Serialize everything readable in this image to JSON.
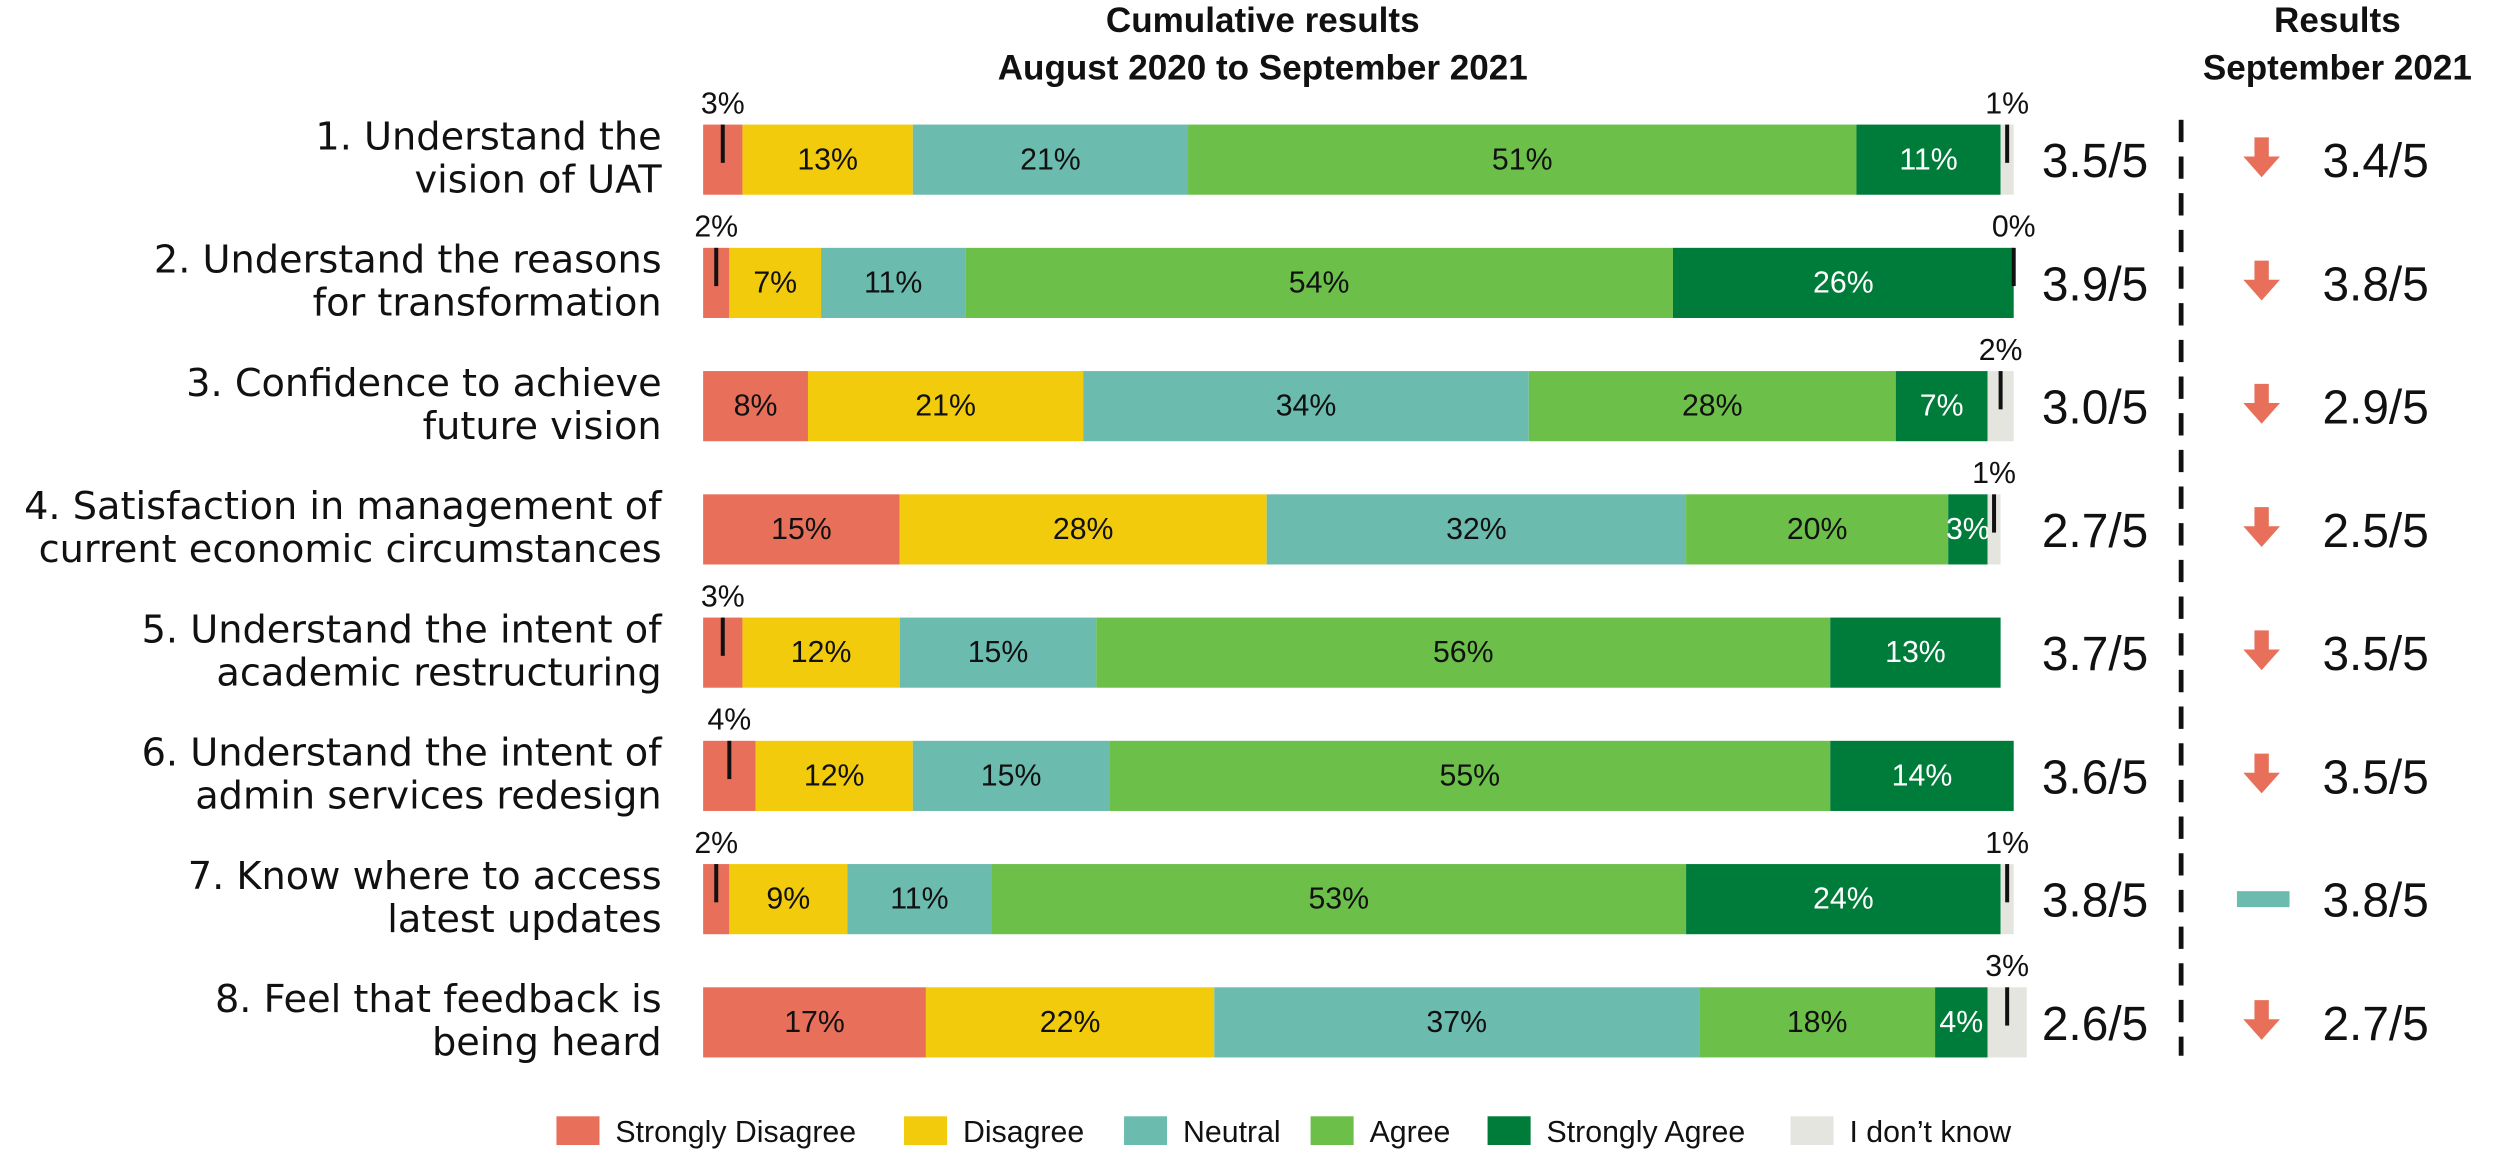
{
  "chart_data": {
    "type": "stacked-bar-horizontal",
    "title": [
      "Cumulative results",
      "August 2020 to September 2021"
    ],
    "side_title": [
      "Results",
      "September 2021"
    ],
    "categories": [
      [
        "1. Understand the",
        "vision of UAT"
      ],
      [
        "2. Understand the reasons",
        "for transformation"
      ],
      [
        "3. Confidence to achieve",
        "future vision"
      ],
      [
        "4. Satisfaction in management of",
        "current economic circumstances"
      ],
      [
        "5. Understand the intent of",
        "academic restructuring"
      ],
      [
        "6. Understand the intent of",
        "admin services redesign"
      ],
      [
        "7. Know where to access",
        "latest updates"
      ],
      [
        "8. Feel that feedback is",
        "being heard"
      ]
    ],
    "xlim": [
      0,
      100
    ],
    "series": [
      {
        "name": "Strongly Disagree",
        "color": "#e8705a",
        "values": [
          3,
          2,
          8,
          15,
          3,
          4,
          2,
          17
        ],
        "value_labels": [
          "3%",
          "2%",
          "8%",
          "15%",
          "3%",
          "4%",
          "2%",
          "17%"
        ]
      },
      {
        "name": "Disagree",
        "color": "#f2cc0c",
        "values": [
          13,
          7,
          21,
          28,
          12,
          12,
          9,
          22
        ],
        "value_labels": [
          "13%",
          "7%",
          "21%",
          "28%",
          "12%",
          "12%",
          "9%",
          "22%"
        ]
      },
      {
        "name": "Neutral",
        "color": "#6bbbae",
        "values": [
          21,
          11,
          34,
          32,
          15,
          15,
          11,
          37
        ],
        "value_labels": [
          "21%",
          "11%",
          "34%",
          "32%",
          "15%",
          "15%",
          "11%",
          "37%"
        ]
      },
      {
        "name": "Agree",
        "color": "#6cc04a",
        "values": [
          51,
          54,
          28,
          20,
          56,
          55,
          53,
          18
        ],
        "value_labels": [
          "51%",
          "54%",
          "28%",
          "20%",
          "56%",
          "55%",
          "53%",
          "18%"
        ]
      },
      {
        "name": "Strongly Agree",
        "color": "#007c3a",
        "values": [
          11,
          26,
          7,
          3,
          13,
          14,
          24,
          4
        ],
        "value_labels": [
          "11%",
          "26%",
          "7%",
          "3%",
          "13%",
          "14%",
          "24%",
          "4%"
        ]
      },
      {
        "name": "I don’t know",
        "color": "#e5e5e0",
        "values": [
          1,
          0,
          2,
          1,
          null,
          null,
          1,
          3
        ],
        "value_labels": [
          "1%",
          "0%",
          "2%",
          "1%",
          null,
          null,
          "1%",
          "3%"
        ]
      }
    ],
    "overall_scores": [
      "3.5/5",
      "3.9/5",
      "3.0/5",
      "2.7/5",
      "3.7/5",
      "3.6/5",
      "3.8/5",
      "2.6/5"
    ],
    "latest_scores": [
      "3.4/5",
      "3.8/5",
      "2.9/5",
      "2.5/5",
      "3.5/5",
      "3.5/5",
      "3.8/5",
      "2.7/5"
    ],
    "latest_trend": [
      "down",
      "down",
      "down",
      "down",
      "down",
      "down",
      "flat",
      "down"
    ]
  }
}
